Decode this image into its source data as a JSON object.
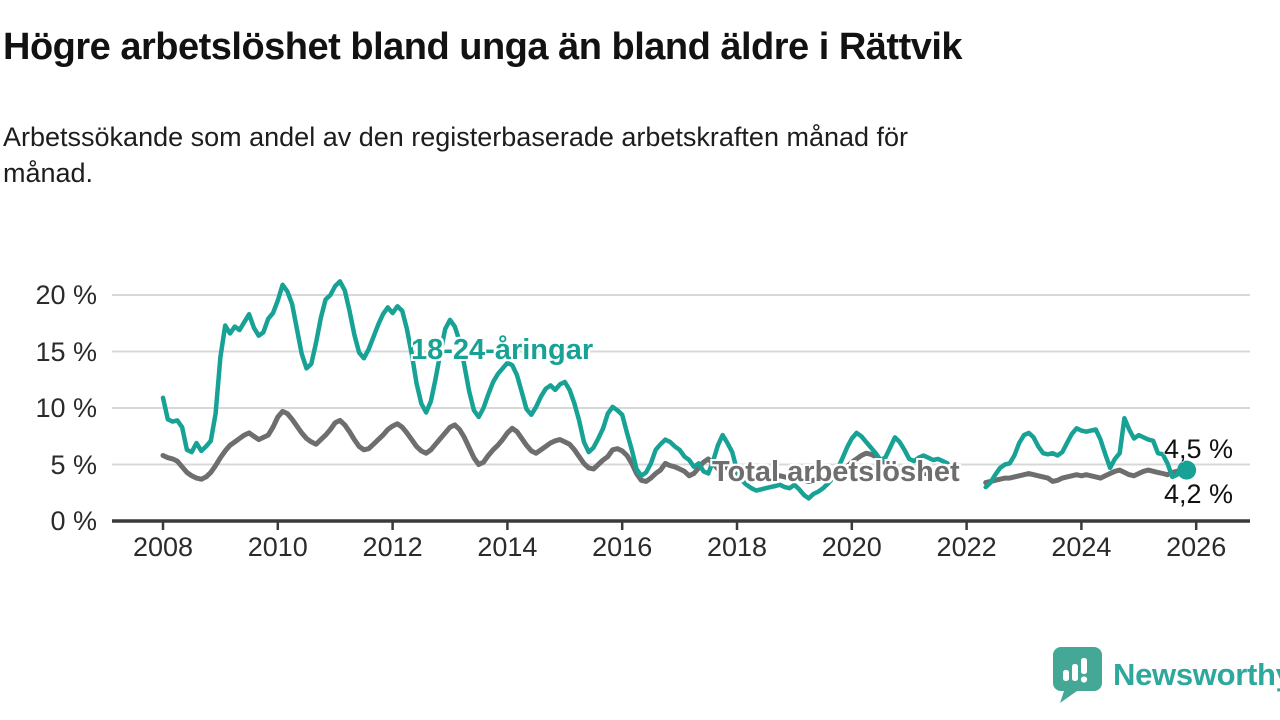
{
  "title": "Högre arbetslöshet bland unga än bland äldre i Rättvik",
  "subtitle": "Arbetssökande som andel av den registerbaserade arbetskraften månad för månad.",
  "branding": {
    "logo_text": "Newsworthy",
    "logo_icon": "bar-chart-speech-bubble-icon",
    "logo_color": "#45a795",
    "logo_text_color": "#2ea89c"
  },
  "colors": {
    "young_line": "#17a295",
    "total_line": "#6e6e6e",
    "gridline": "#d8d8d8",
    "axis": "#3a3a3a",
    "text": "#1d1d1d"
  },
  "chart_data": {
    "type": "line",
    "title": "Högre arbetslöshet bland unga än bland äldre i Rättvik",
    "subtitle": "Arbetssökande som andel av den registerbaserade arbetskraften månad för månad.",
    "unit": "%",
    "frequency": "monthly",
    "x_start_year": 2008,
    "x_end_label": "2026",
    "x_ticks": [
      2008,
      2010,
      2012,
      2014,
      2016,
      2018,
      2020,
      2022,
      2024,
      2026
    ],
    "y_ticks": [
      {
        "value": 20,
        "label": "20 %"
      },
      {
        "value": 15,
        "label": "15 %"
      },
      {
        "value": 10,
        "label": "10 %"
      },
      {
        "value": 5,
        "label": "5 %"
      },
      {
        "value": 0,
        "label": "0 %"
      }
    ],
    "ylim": [
      0,
      22
    ],
    "grid": true,
    "legend_position": "inline-labels",
    "series": [
      {
        "name": "18-24-åringar",
        "color": "#17a295",
        "end_label": "4,5 %",
        "end_value": 4.5,
        "end_dot": true,
        "values": [
          10.9,
          9.0,
          8.8,
          8.9,
          8.3,
          6.3,
          6.1,
          6.9,
          6.2,
          6.6,
          7.1,
          9.5,
          14.5,
          17.3,
          16.6,
          17.2,
          16.9,
          17.6,
          18.3,
          17.1,
          16.4,
          16.7,
          17.9,
          18.4,
          19.5,
          20.9,
          20.3,
          19.2,
          17.0,
          14.8,
          13.5,
          13.9,
          15.8,
          18.0,
          19.6,
          20.0,
          20.8,
          21.2,
          20.4,
          18.6,
          16.5,
          14.9,
          14.4,
          15.2,
          16.3,
          17.4,
          18.3,
          18.9,
          18.4,
          19.0,
          18.6,
          17.0,
          14.8,
          12.2,
          10.4,
          9.6,
          10.6,
          12.6,
          14.9,
          17.0,
          17.8,
          17.2,
          15.9,
          13.8,
          11.5,
          9.8,
          9.2,
          10.0,
          11.2,
          12.3,
          13.0,
          13.5,
          14.0,
          13.8,
          12.9,
          11.4,
          9.9,
          9.4,
          10.1,
          11.0,
          11.7,
          12.0,
          11.6,
          12.1,
          12.3,
          11.6,
          10.4,
          8.9,
          7.0,
          6.1,
          6.5,
          7.3,
          8.2,
          9.5,
          10.1,
          9.8,
          9.4,
          7.8,
          6.3,
          4.6,
          4.0,
          4.3,
          5.1,
          6.3,
          6.8,
          7.2,
          7.0,
          6.6,
          6.3,
          5.7,
          5.4,
          4.8,
          5.1,
          4.4,
          4.2,
          5.3,
          6.7,
          7.6,
          6.9,
          6.1,
          4.5,
          3.6,
          3.2,
          2.9,
          2.7,
          2.8,
          2.9,
          3.0,
          3.1,
          3.2,
          3.0,
          2.9,
          3.2,
          2.8,
          2.3,
          2.0,
          2.4,
          2.6,
          2.9,
          3.3,
          3.8,
          4.6,
          5.5,
          6.5,
          7.3,
          7.8,
          7.5,
          7.0,
          6.5,
          6.0,
          5.4,
          5.6,
          6.5,
          7.4,
          7.0,
          6.3,
          5.5,
          5.3,
          5.6,
          5.8,
          5.6,
          5.4,
          5.5,
          5.3,
          5.1,
          null,
          null,
          null,
          null,
          null,
          null,
          null,
          3.0,
          3.4,
          4.1,
          4.7,
          5.0,
          5.1,
          5.8,
          6.9,
          7.6,
          7.8,
          7.4,
          6.6,
          6.0,
          5.9,
          6.0,
          5.8,
          6.1,
          6.9,
          7.7,
          8.2,
          8.0,
          7.9,
          8.0,
          8.1,
          7.2,
          5.9,
          4.7,
          5.5,
          6.0,
          9.1,
          8.1,
          7.3,
          7.6,
          7.4,
          7.2,
          7.1,
          6.0,
          5.9,
          5.1,
          3.9,
          4.1,
          5.0,
          4.5
        ]
      },
      {
        "name": "Total arbetslöshet",
        "color": "#6e6e6e",
        "end_label": "4,2 %",
        "end_value": 4.2,
        "end_dot": false,
        "values": [
          5.8,
          5.6,
          5.5,
          5.3,
          4.8,
          4.3,
          4.0,
          3.8,
          3.7,
          3.9,
          4.3,
          4.9,
          5.6,
          6.2,
          6.7,
          7.0,
          7.3,
          7.6,
          7.8,
          7.5,
          7.2,
          7.4,
          7.6,
          8.3,
          9.2,
          9.7,
          9.5,
          9.0,
          8.4,
          7.8,
          7.3,
          7.0,
          6.8,
          7.2,
          7.6,
          8.1,
          8.7,
          8.9,
          8.5,
          7.9,
          7.2,
          6.6,
          6.3,
          6.4,
          6.8,
          7.2,
          7.6,
          8.1,
          8.4,
          8.6,
          8.3,
          7.8,
          7.2,
          6.6,
          6.2,
          6.0,
          6.3,
          6.8,
          7.3,
          7.8,
          8.3,
          8.5,
          8.1,
          7.4,
          6.5,
          5.6,
          5.0,
          5.2,
          5.8,
          6.3,
          6.7,
          7.2,
          7.8,
          8.2,
          7.9,
          7.3,
          6.7,
          6.2,
          6.0,
          6.3,
          6.6,
          6.9,
          7.1,
          7.2,
          7.0,
          6.8,
          6.3,
          5.7,
          5.1,
          4.7,
          4.6,
          5.0,
          5.4,
          5.7,
          6.3,
          6.4,
          6.2,
          5.8,
          5.1,
          4.2,
          3.6,
          3.5,
          3.8,
          4.2,
          4.5,
          5.1,
          4.9,
          4.8,
          4.6,
          4.4,
          4.0,
          4.2,
          4.7,
          5.2,
          5.5,
          5.1,
          4.6,
          5.0,
          4.7,
          4.4,
          4.2,
          4.0,
          3.9,
          3.8,
          3.7,
          3.6,
          3.7,
          3.8,
          3.9,
          4.0,
          3.9,
          3.8,
          3.9,
          3.8,
          3.6,
          3.5,
          3.6,
          3.7,
          3.8,
          3.9,
          4.0,
          4.2,
          4.5,
          4.8,
          5.2,
          5.5,
          5.8,
          6.0,
          5.9,
          5.7,
          5.4,
          5.2,
          5.0,
          4.8,
          4.6,
          4.5,
          4.5,
          4.6,
          4.4,
          4.2,
          4.2,
          4.1,
          4.2,
          4.1,
          4.1,
          null,
          null,
          null,
          null,
          null,
          null,
          null,
          3.4,
          3.5,
          3.6,
          3.7,
          3.8,
          3.8,
          3.9,
          4.0,
          4.1,
          4.2,
          4.1,
          4.0,
          3.9,
          3.8,
          3.5,
          3.6,
          3.8,
          3.9,
          4.0,
          4.1,
          4.0,
          4.1,
          4.0,
          3.9,
          3.8,
          4.0,
          4.2,
          4.4,
          4.5,
          4.3,
          4.1,
          4.0,
          4.2,
          4.4,
          4.5,
          4.4,
          4.3,
          4.2,
          4.1,
          4.3,
          4.4,
          4.2,
          4.2
        ]
      }
    ],
    "data_gap_note": "gap in both series from Oct 2021 to Apr 2022"
  }
}
